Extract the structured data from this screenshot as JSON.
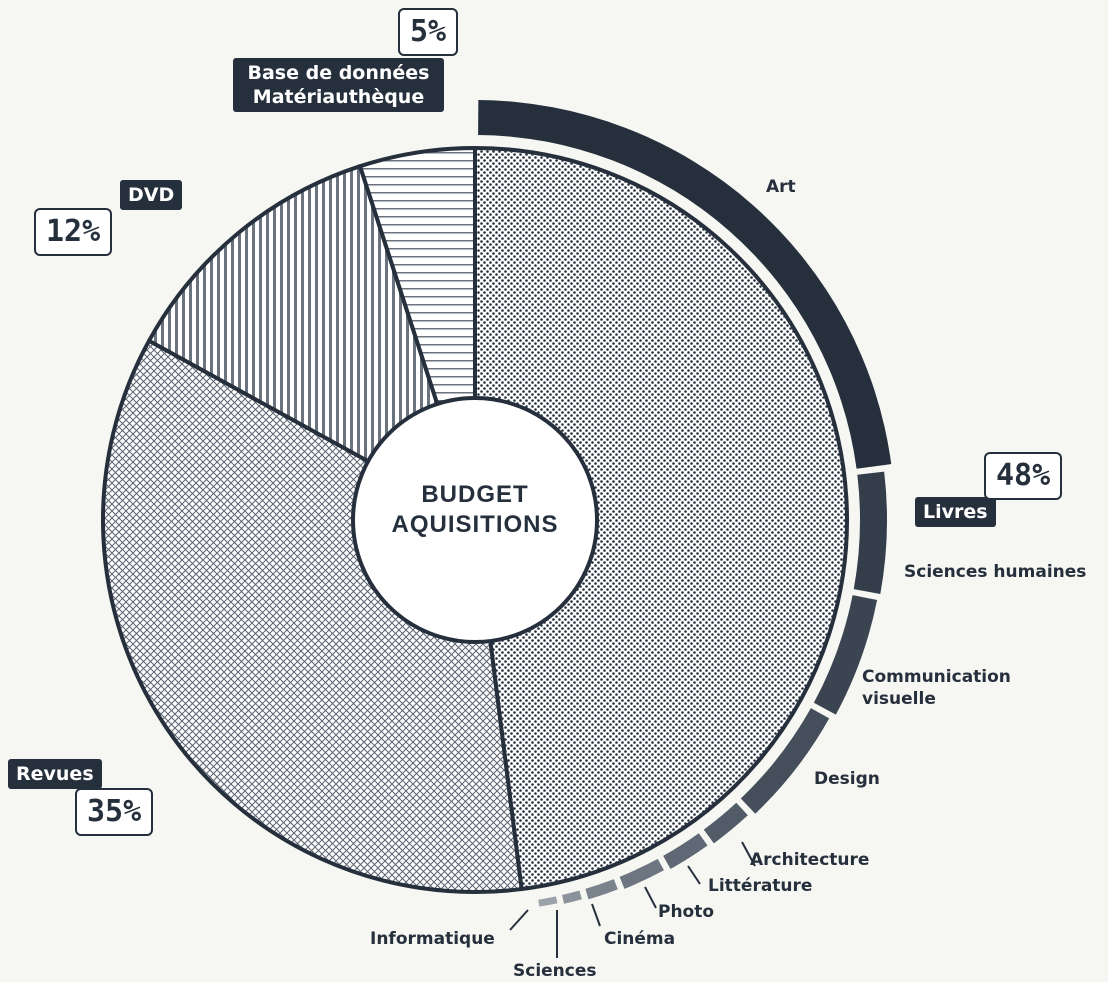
{
  "chart_data": {
    "type": "pie",
    "title": "BUDGET AQUISITIONS",
    "categories": [
      "Livres",
      "Revues",
      "DVD",
      "Base de données Matériauthèque"
    ],
    "values": [
      48,
      35,
      12,
      5
    ],
    "value_labels": [
      "48%",
      "35%",
      "12%",
      "5%"
    ],
    "subcategories": [
      "Art",
      "Sciences humaines",
      "Communication visuelle",
      "Design",
      "Architecture",
      "Littérature",
      "Photo",
      "Cinéma",
      "Sciences",
      "Informatique"
    ],
    "subvalues": [
      23,
      5,
      5,
      5,
      2,
      2,
      2,
      1.5,
      1,
      1
    ],
    "subcolors": [
      "#26303d",
      "#343e4b",
      "#3b4552",
      "#454f5c",
      "#525c68",
      "#5f6874",
      "#6c7580",
      "#7a828c",
      "#8b929b",
      "#9ca2aa"
    ]
  }
}
